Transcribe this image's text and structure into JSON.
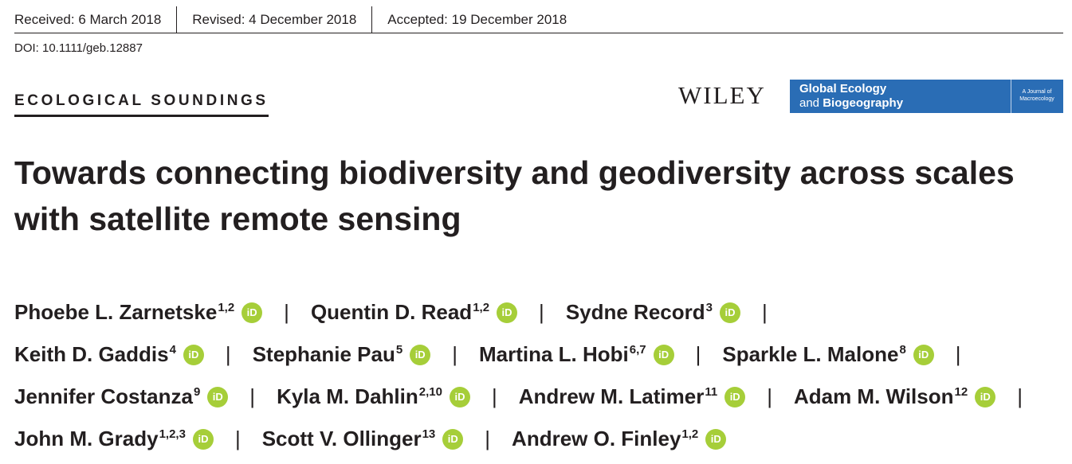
{
  "header": {
    "received": "Received: 6 March 2018",
    "revised": "Revised: 4 December 2018",
    "accepted": "Accepted: 19 December 2018",
    "doi": "DOI: 10.1111/geb.12887"
  },
  "section_label": "ECOLOGICAL SOUNDINGS",
  "publisher": "WILEY",
  "journal": {
    "name_line1": "Global Ecology",
    "name_line2_pre": "and ",
    "name_line2_bold": "Biogeography",
    "subtitle": "A Journal of Macroecology",
    "color": "#2a6db5"
  },
  "title": "Towards connecting biodiversity and geodiversity across scales with satellite remote sensing",
  "orcid": {
    "label": "iD",
    "color": "#a6ce39",
    "icon": "orcid-icon"
  },
  "separator": "|",
  "authors": [
    {
      "name": "Phoebe L. Zarnetske",
      "aff": "1,2"
    },
    {
      "name": "Quentin D. Read",
      "aff": "1,2"
    },
    {
      "name": "Sydne Record",
      "aff": "3"
    },
    {
      "name": "Keith D. Gaddis",
      "aff": "4"
    },
    {
      "name": "Stephanie Pau",
      "aff": "5"
    },
    {
      "name": "Martina L. Hobi",
      "aff": "6,7"
    },
    {
      "name": "Sparkle L. Malone",
      "aff": "8"
    },
    {
      "name": "Jennifer Costanza",
      "aff": "9"
    },
    {
      "name": "Kyla M. Dahlin",
      "aff": "2,10"
    },
    {
      "name": "Andrew M. Latimer",
      "aff": "11"
    },
    {
      "name": "Adam M. Wilson",
      "aff": "12"
    },
    {
      "name": "John M. Grady",
      "aff": "1,2,3"
    },
    {
      "name": "Scott V. Ollinger",
      "aff": "13"
    },
    {
      "name": "Andrew O. Finley",
      "aff": "1,2"
    }
  ]
}
